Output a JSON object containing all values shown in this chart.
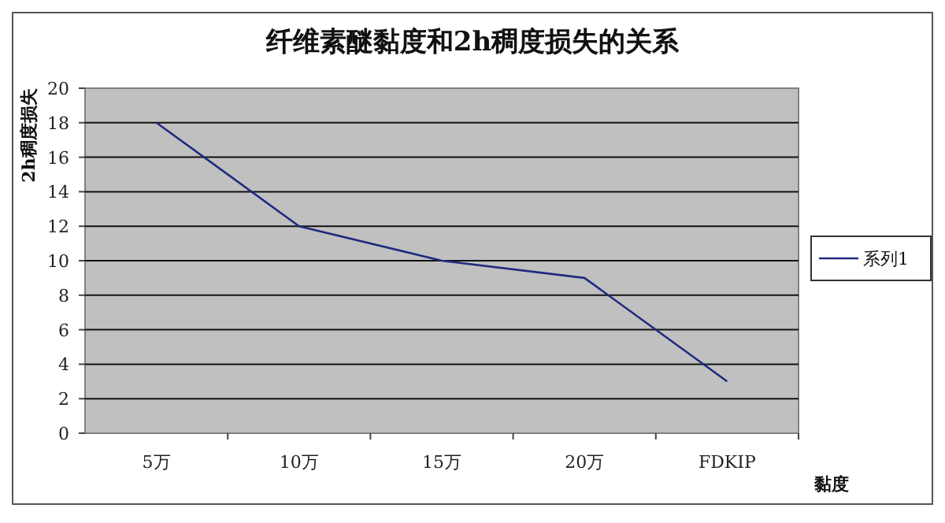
{
  "chart_data": {
    "type": "line",
    "title": "纤维素醚黏度和2h稠度损失的关系",
    "xlabel": "黏度",
    "ylabel": "2h稠度损失",
    "categories": [
      "5万",
      "10万",
      "15万",
      "20万",
      "FDKIP"
    ],
    "series": [
      {
        "name": "系列1",
        "color": "#1f2a80",
        "values": [
          18,
          12,
          10,
          9,
          3
        ]
      }
    ],
    "ylim": [
      0,
      20
    ],
    "yticks": [
      0,
      2,
      4,
      6,
      8,
      10,
      12,
      14,
      16,
      18,
      20
    ],
    "grid": "y",
    "legend": "right",
    "marker": "none",
    "line_style": "solid"
  }
}
